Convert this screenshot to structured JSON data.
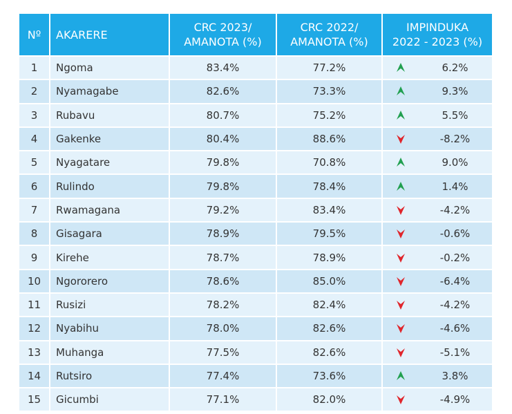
{
  "table": {
    "header": [
      [
        "Nº"
      ],
      [
        "AKARERE"
      ],
      [
        "CRC 2023/",
        "AMANOTA (%)"
      ],
      [
        "CRC 2022/",
        "AMANOTA (%)"
      ],
      [
        "IMPINDUKA",
        "2022 - 2023 (%)"
      ]
    ],
    "rows": [
      [
        "1",
        "Ngoma",
        "83.4%",
        "77.2%",
        "6.2%"
      ],
      [
        "2",
        "Nyamagabe",
        "82.6%",
        "73.3%",
        "9.3%"
      ],
      [
        "3",
        "Rubavu",
        "80.7%",
        "75.2%",
        "5.5%"
      ],
      [
        "4",
        "Gakenke",
        "80.4%",
        "88.6%",
        "-8.2%"
      ],
      [
        "5",
        "Nyagatare",
        "79.8%",
        "70.8%",
        "9.0%"
      ],
      [
        "6",
        "Rulindo",
        "79.8%",
        "78.4%",
        "1.4%"
      ],
      [
        "7",
        "Rwamagana",
        "79.2%",
        "83.4%",
        "-4.2%"
      ],
      [
        "8",
        "Gisagara",
        "78.9%",
        "79.5%",
        "-0.6%"
      ],
      [
        "9",
        "Kirehe",
        "78.7%",
        "78.9%",
        "-0.2%"
      ],
      [
        "10",
        "Ngororero",
        "78.6%",
        "85.0%",
        "-6.4%"
      ],
      [
        "11",
        "Rusizi",
        "78.2%",
        "82.4%",
        "-4.2%"
      ],
      [
        "12",
        "Nyabihu",
        "78.0%",
        "82.6%",
        "-4.6%"
      ],
      [
        "13",
        "Muhanga",
        "77.5%",
        "82.6%",
        "-5.1%"
      ],
      [
        "14",
        "Rutsiro",
        "77.4%",
        "73.6%",
        "3.8%"
      ],
      [
        "15",
        "Gicumbi",
        "77.1%",
        "82.0%",
        "-4.9%"
      ]
    ]
  }
}
